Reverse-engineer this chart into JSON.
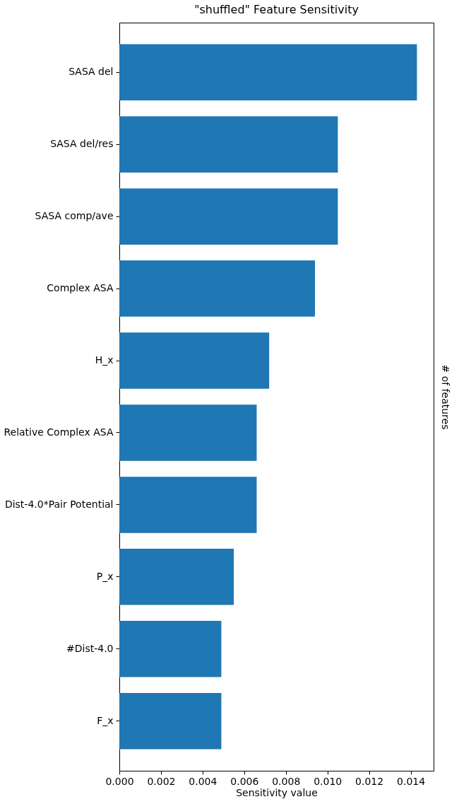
{
  "chart_data": {
    "type": "bar",
    "orientation": "horizontal",
    "title": "\"shuffled\" Feature Sensitivity",
    "xlabel": "Sensitivity value",
    "y2label": "# of features",
    "categories": [
      "SASA del",
      "SASA del/res",
      "SASA comp/ave",
      "Complex ASA",
      "H_x",
      "Relative Complex ASA",
      "Dist-4.0*Pair Potential",
      "P_x",
      "#Dist-4.0",
      "F_x"
    ],
    "values": [
      0.0143,
      0.0105,
      0.0105,
      0.0094,
      0.0072,
      0.0066,
      0.0066,
      0.0055,
      0.0049,
      0.0049
    ],
    "color": "#1f77b4",
    "xlim": [
      0,
      0.0151
    ],
    "xticks": [
      {
        "value": 0,
        "label": "0.000"
      },
      {
        "value": 0.002,
        "label": "0.002"
      },
      {
        "value": 0.004,
        "label": "0.004"
      },
      {
        "value": 0.006,
        "label": "0.006"
      },
      {
        "value": 0.008,
        "label": "0.008"
      },
      {
        "value": 0.01,
        "label": "0.010"
      },
      {
        "value": 0.012,
        "label": "0.012"
      },
      {
        "value": 0.014,
        "label": "0.014"
      }
    ],
    "grid": false
  }
}
